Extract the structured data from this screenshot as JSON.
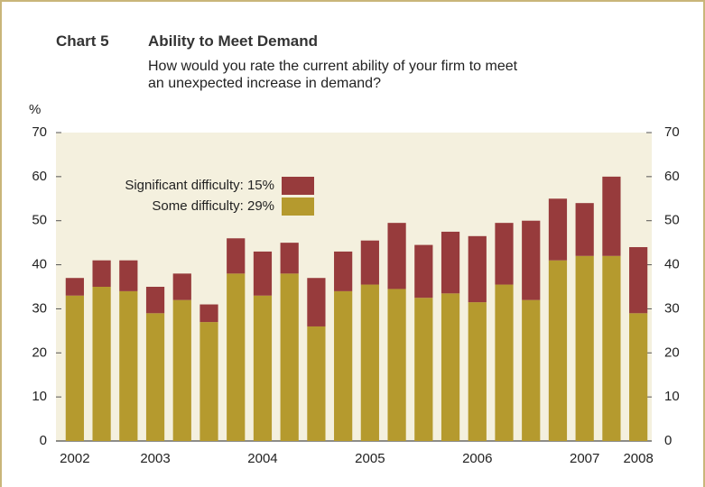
{
  "chart_data": {
    "type": "stacked_bar",
    "chart_number": "Chart 5",
    "title": "Ability to Meet Demand",
    "subtitle": [
      "How would you rate the current ability of your firm to meet",
      "an unexpected increase in demand?"
    ],
    "y_label": "%",
    "categories": [
      "2002",
      null,
      null,
      "2003",
      null,
      null,
      null,
      "2004",
      null,
      null,
      null,
      "2005",
      null,
      null,
      null,
      "2006",
      null,
      null,
      null,
      "2007",
      null,
      "2008"
    ],
    "series": [
      {
        "name": "Some difficulty: 29%",
        "color": "#b59a2e",
        "values": [
          33,
          35,
          34,
          29,
          32,
          27,
          38,
          33,
          38,
          26,
          34,
          35.5,
          34.5,
          32.5,
          33.5,
          31.5,
          35.5,
          32,
          41,
          42,
          42,
          29
        ]
      },
      {
        "name": "Significant difficulty: 15%",
        "color": "#973b3c",
        "values": [
          4,
          6,
          7,
          6,
          6,
          4,
          8,
          10,
          7,
          11,
          9,
          10,
          15,
          12,
          14,
          15,
          14,
          18,
          14,
          12,
          18,
          15
        ]
      }
    ],
    "ylim": [
      0,
      70
    ],
    "yticks": [
      0,
      10,
      20,
      30,
      40,
      50,
      60,
      70
    ],
    "y2lim": [
      0,
      70
    ],
    "y2ticks": [
      0,
      10,
      20,
      30,
      40,
      50,
      60,
      70
    ]
  }
}
